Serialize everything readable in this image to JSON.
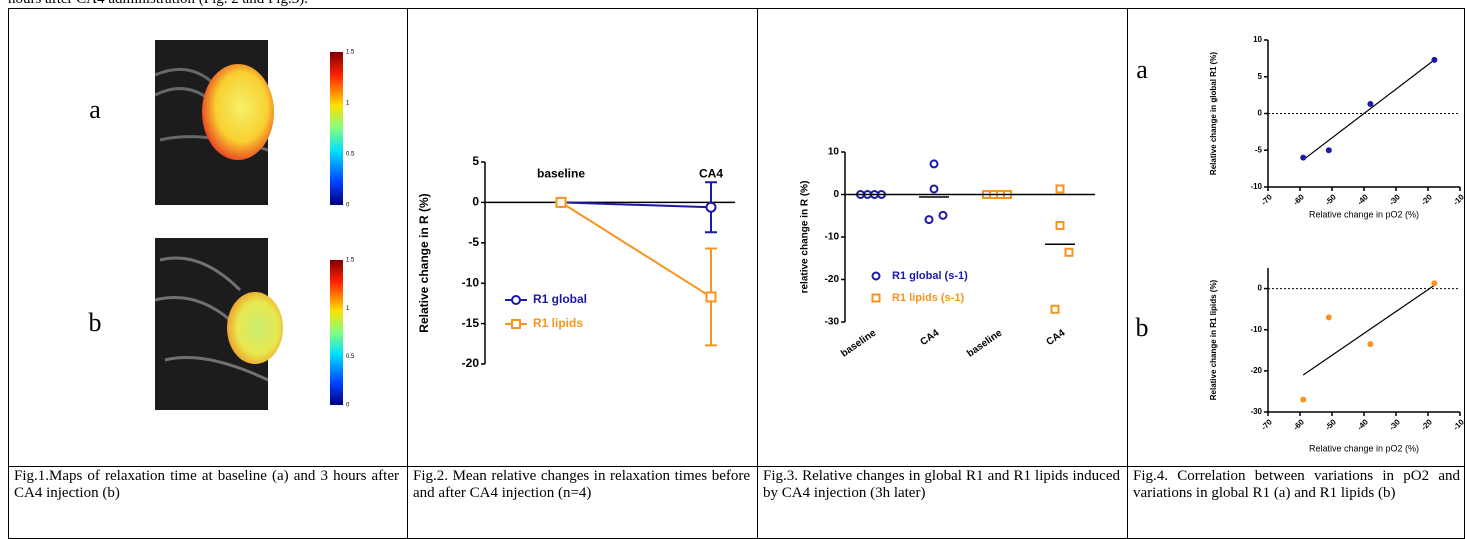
{
  "top_text": "hours after CA4 administration (Fig. 2 and Fig.3).",
  "figure1": {
    "labels": [
      "a",
      "b"
    ],
    "colorbar_lim": [
      0,
      1.5
    ],
    "colorbar_ticks": [
      1.5,
      1,
      0.5,
      0
    ]
  },
  "figure4": {
    "labels": [
      "a",
      "b"
    ]
  },
  "captions": [
    "Fig.1.Maps of relaxation time at baseline (a) and 3 hours after CA4 injection (b)",
    "Fig.2. Mean relative changes in relaxation times before and after CA4 injection (n=4)",
    "Fig.3. Relative changes in global R1 and R1 lipids induced by CA4 injection (3h later)",
    "Fig.4. Correlation between variations in pO2 and variations in global R1 (a) and R1 lipids (b)"
  ],
  "chart_data": [
    {
      "type": "line",
      "y_label": "Relative change in R (%)",
      "categories": [
        "baseline",
        "CA4"
      ],
      "series": [
        {
          "name": "R1 global",
          "color": "#1a1aa6",
          "marker": "circle",
          "values": [
            0,
            -0.6
          ],
          "errors": [
            0,
            3.1
          ]
        },
        {
          "name": "R1 lipids",
          "color": "#f7941d",
          "marker": "square",
          "values": [
            0,
            -11.7
          ],
          "errors": [
            0,
            6
          ]
        }
      ],
      "ylim": [
        -20,
        5
      ],
      "yticks": [
        5,
        0,
        -5,
        -10,
        -15,
        -20
      ]
    },
    {
      "type": "dot",
      "y_label": "relative change in R (%)",
      "categories": [
        "baseline",
        "CA4",
        "baseline",
        "CA4"
      ],
      "series": [
        {
          "name": "R1 global (s-1)",
          "color": "#1a1aa6",
          "marker": "circle",
          "values": [
            [
              0,
              0,
              0,
              0
            ],
            [
              7.2,
              1.3,
              -4.9,
              -5.9
            ],
            null,
            null
          ],
          "means": [
            0,
            -0.6,
            null,
            null
          ]
        },
        {
          "name": "R1 lipids (s-1)",
          "color": "#f7941d",
          "marker": "square",
          "values": [
            null,
            null,
            [
              0,
              0,
              0,
              0
            ],
            [
              1.3,
              -7.3,
              -13.6,
              -27
            ]
          ],
          "means": [
            null,
            null,
            0,
            -11.7
          ]
        }
      ],
      "ylim": [
        -30,
        10
      ],
      "yticks": [
        10,
        0,
        -10,
        -20,
        -30
      ]
    },
    {
      "type": "scatter",
      "y_label": "Relative change in global R1 (%)",
      "x_label": "Relative change in pO2 (%)",
      "x": [
        -59,
        -51,
        -38,
        -18
      ],
      "values": [
        -6,
        -5,
        1.3,
        7.3
      ],
      "color": "#1a1aa6",
      "fit": {
        "x": [
          -59,
          -18
        ],
        "y": [
          -6.3,
          7.3
        ]
      },
      "reference_line": 0,
      "xlim": [
        -70,
        -10
      ],
      "xticks": [
        -70,
        -60,
        -50,
        -40,
        -30,
        -20,
        -10
      ],
      "ylim": [
        -10,
        10
      ],
      "yticks": [
        10,
        5,
        0,
        -5,
        -10
      ]
    },
    {
      "type": "scatter",
      "y_label": "Relative change in R1 lipids (%)",
      "x_label": "Relative change in pO2 (%)",
      "x": [
        -59,
        -51,
        -38,
        -18
      ],
      "values": [
        -27,
        -7,
        -13.5,
        1.3
      ],
      "color": "#f7941d",
      "fit": {
        "x": [
          -59,
          -18
        ],
        "y": [
          -21,
          0.8
        ]
      },
      "reference_line": 0,
      "xlim": [
        -70,
        -10
      ],
      "xticks": [
        -70,
        -60,
        -50,
        -40,
        -30,
        -20,
        -10
      ],
      "ylim": [
        -30,
        5
      ],
      "yticks": [
        0,
        -10,
        -20,
        -30
      ]
    }
  ]
}
